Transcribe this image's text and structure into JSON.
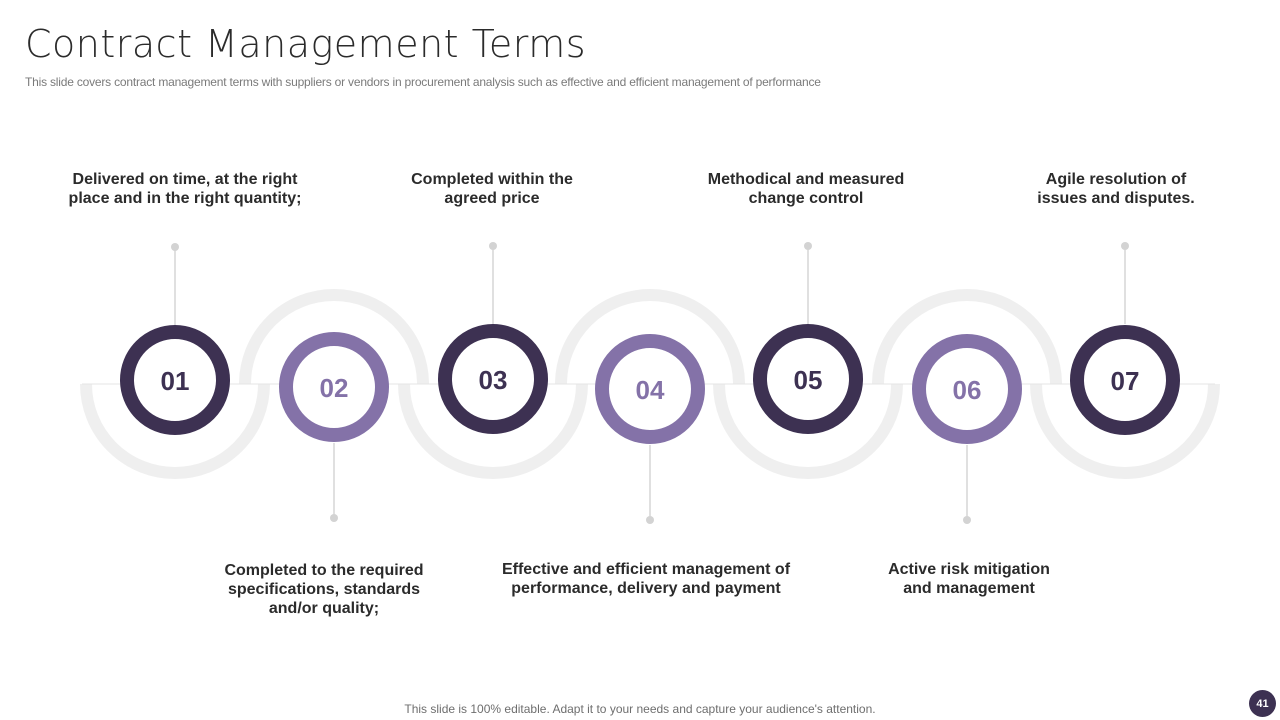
{
  "slide": {
    "title": "Contract Management Terms",
    "subtitle": "This slide covers contract management terms with suppliers or vendors in procurement analysis such as effective and efficient management of performance",
    "footer": "This slide is 100% editable. Adapt it to your needs and capture your audience's attention.",
    "page_number": "41"
  },
  "steps": [
    {
      "number": "01",
      "text": "Delivered on time, at the right place and in the right quantity;"
    },
    {
      "number": "02",
      "text": "Completed to the required specifications, standards and/or quality;"
    },
    {
      "number": "03",
      "text": "Completed within the agreed price"
    },
    {
      "number": "04",
      "text": "Effective and efficient management of performance, delivery and payment"
    },
    {
      "number": "05",
      "text": "Methodical and measured change control"
    },
    {
      "number": "06",
      "text": "Active risk mitigation and management"
    },
    {
      "number": "07",
      "text": "Agile resolution of issues and disputes."
    }
  ],
  "colors": {
    "dark_purple": "#3d3152",
    "light_purple": "#8472a8",
    "track_gray": "#efefef",
    "connector_gray": "#cccccc"
  }
}
